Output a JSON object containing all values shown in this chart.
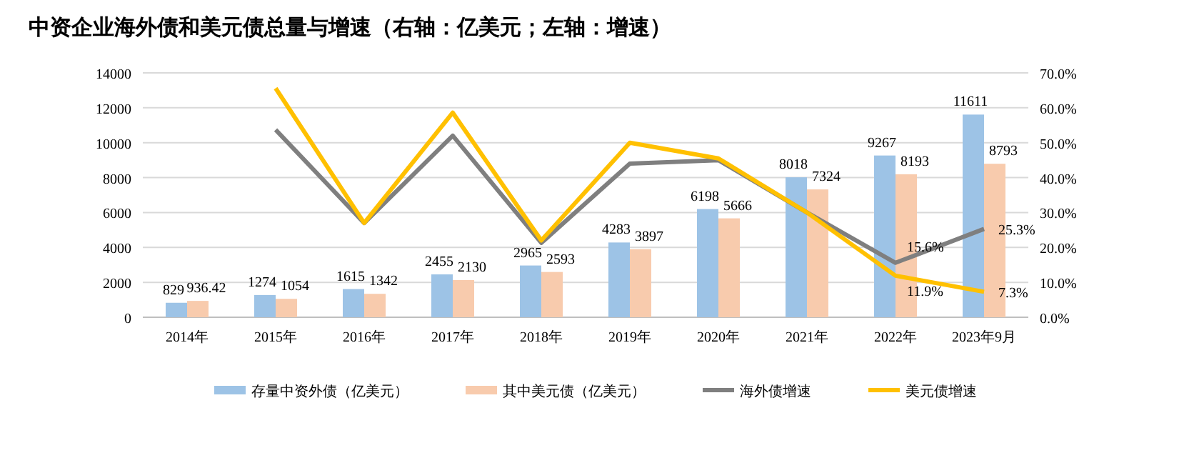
{
  "chart_data": {
    "type": "bar",
    "title": "中资企业海外债和美元债总量与增速（右轴：亿美元；左轴：增速）",
    "categories": [
      "2014年",
      "2015年",
      "2016年",
      "2017年",
      "2018年",
      "2019年",
      "2020年",
      "2021年",
      "2022年",
      "2023年9月"
    ],
    "series": [
      {
        "name": "存量中资外债（亿美元）",
        "color": "#9dc3e6",
        "values": [
          829,
          1274,
          1615,
          2455,
          2965,
          4283,
          6198,
          8018,
          9267,
          11611
        ],
        "value_labels": [
          "829",
          "1274",
          "1615",
          "2455",
          "2965",
          "4283",
          "6198",
          "8018",
          "9267",
          "11611"
        ]
      },
      {
        "name": "其中美元债（亿美元）",
        "color": "#f8cbad",
        "values": [
          936.42,
          1054,
          1342,
          2130,
          2593,
          3897,
          5666,
          7324,
          8193,
          8793
        ],
        "value_labels": [
          "936.42",
          "1054",
          "1342",
          "2130",
          "2593",
          "3897",
          "5666",
          "7324",
          "8193",
          "8793"
        ]
      },
      {
        "name": "海外债增速",
        "type": "line",
        "axis": "y2",
        "color": "#7f7f7f",
        "values": [
          null,
          53.7,
          27,
          52,
          21.3,
          44,
          45,
          30,
          15.6,
          25.3
        ],
        "value_labels": [
          null,
          null,
          null,
          null,
          null,
          null,
          null,
          null,
          "15.6%",
          "25.3%"
        ]
      },
      {
        "name": "美元债增速",
        "type": "line",
        "axis": "y2",
        "color": "#ffc000",
        "values": [
          null,
          65.6,
          27,
          58.6,
          22,
          50,
          45.5,
          30,
          11.9,
          7.3
        ],
        "value_labels": [
          null,
          null,
          null,
          null,
          null,
          null,
          null,
          null,
          "11.9%",
          "7.3%"
        ]
      }
    ],
    "ylim": [
      0,
      14000
    ],
    "yticks": [
      0,
      2000,
      4000,
      6000,
      8000,
      10000,
      12000,
      14000
    ],
    "y2lim": [
      0,
      70
    ],
    "y2ticks": [
      {
        "value": 0,
        "label": "0.0%"
      },
      {
        "value": 10,
        "label": "10.0%"
      },
      {
        "value": 20,
        "label": "20.0%"
      },
      {
        "value": 30,
        "label": "30.0%"
      },
      {
        "value": 40,
        "label": "40.0%"
      },
      {
        "value": 50,
        "label": "50.0%"
      },
      {
        "value": 60,
        "label": "60.0%"
      },
      {
        "value": 70,
        "label": "70.0%"
      }
    ],
    "grid": "y",
    "legend": "bottom",
    "marker": "none",
    "line_style": "solid"
  }
}
